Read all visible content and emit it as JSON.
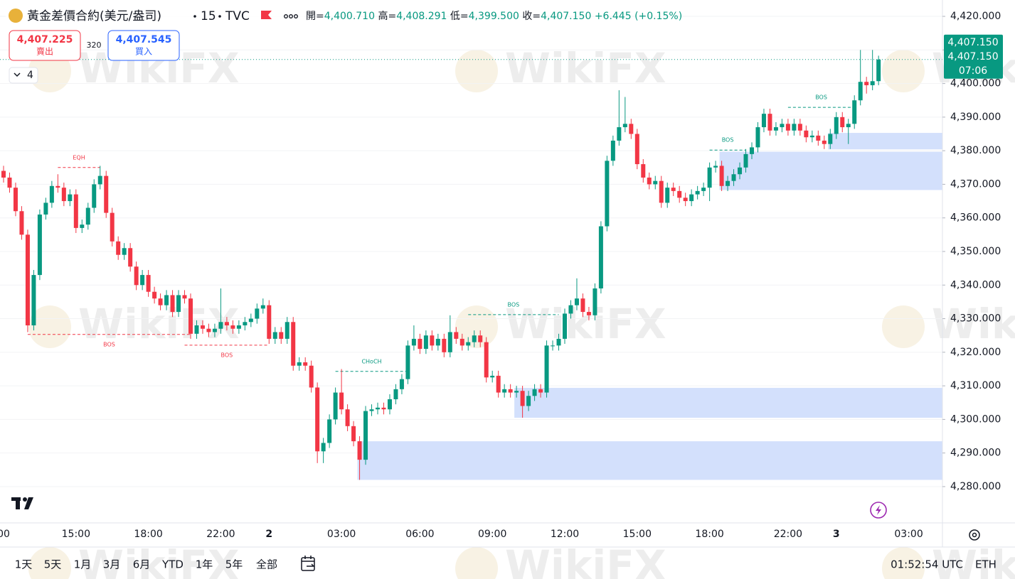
{
  "ui": {
    "symbol": "黃金差價合約(美元/盎司)",
    "interval": "15",
    "exchange": "TVC",
    "ohlc": [
      {
        "label": "開=",
        "value": "4,400.710"
      },
      {
        "label": "高=",
        "value": "4,408.291"
      },
      {
        "label": "低=",
        "value": "4,399.500"
      },
      {
        "label": "收=",
        "value": "4,407.150"
      }
    ],
    "change": "+6.445 (+0.15%)",
    "sell": {
      "price": "4,407.225",
      "label": "賣出"
    },
    "spread": "320",
    "buy": {
      "price": "4,407.545",
      "label": "買入"
    },
    "indicators": "4",
    "ranges": [
      "1天",
      "5天",
      "1月",
      "3月",
      "6月",
      "YTD",
      "1年",
      "5年",
      "全部"
    ],
    "clock": "01:52:54 UTC",
    "session": "ETH",
    "watermark": "WikiFX"
  },
  "chart_data": {
    "type": "candlestick",
    "up_color": "#089981",
    "down_color": "#f23645",
    "grid": true,
    "ylim": [
      4269.2,
      4424.87
    ],
    "yticks": [
      {
        "value": 4280,
        "label": "4,280.000"
      },
      {
        "value": 4290,
        "label": "4,290.000"
      },
      {
        "value": 4300,
        "label": "4,300.000"
      },
      {
        "value": 4310,
        "label": "4,310.000"
      },
      {
        "value": 4320,
        "label": "4,320.000"
      },
      {
        "value": 4330,
        "label": "4,330.000"
      },
      {
        "value": 4340,
        "label": "4,340.000"
      },
      {
        "value": 4350,
        "label": "4,350.000"
      },
      {
        "value": 4360,
        "label": "4,360.000"
      },
      {
        "value": 4370,
        "label": "4,370.000"
      },
      {
        "value": 4380,
        "label": "4,380.000"
      },
      {
        "value": 4390,
        "label": "4,390.000"
      },
      {
        "value": 4400,
        "label": "4,400.000"
      },
      {
        "value": 4410,
        "label": "4,410.000"
      },
      {
        "value": 4420,
        "label": "4,420.000"
      }
    ],
    "categories": [
      "00",
      null,
      null,
      null,
      null,
      null,
      null,
      null,
      null,
      null,
      null,
      null,
      "15:00",
      null,
      null,
      null,
      null,
      null,
      null,
      null,
      null,
      null,
      null,
      null,
      "18:00",
      null,
      null,
      null,
      null,
      null,
      null,
      null,
      null,
      null,
      null,
      null,
      "22:00",
      null,
      null,
      null,
      null,
      null,
      null,
      null,
      "2",
      null,
      null,
      null,
      null,
      null,
      null,
      null,
      null,
      null,
      null,
      null,
      "03:00",
      null,
      null,
      null,
      null,
      null,
      null,
      null,
      null,
      null,
      null,
      null,
      null,
      "06:00",
      null,
      null,
      null,
      null,
      null,
      null,
      null,
      null,
      null,
      null,
      null,
      "09:00",
      null,
      null,
      null,
      null,
      null,
      null,
      null,
      null,
      null,
      null,
      null,
      "12:00",
      null,
      null,
      null,
      null,
      null,
      null,
      null,
      null,
      null,
      null,
      null,
      "15:00",
      null,
      null,
      null,
      null,
      null,
      null,
      null,
      null,
      null,
      null,
      null,
      "18:00",
      null,
      null,
      null,
      null,
      null,
      null,
      null,
      null,
      null,
      null,
      null,
      null,
      "22:00",
      null,
      null,
      null,
      null,
      null,
      null,
      null,
      "3",
      null,
      null,
      null,
      null,
      null,
      null,
      null,
      null,
      null,
      null,
      null,
      "03:00",
      null,
      null,
      null,
      null,
      null
    ],
    "candles": [
      [
        4374,
        4375.5,
        4370.5,
        4372
      ],
      [
        4372,
        4373.5,
        4367.5,
        4369
      ],
      [
        4369,
        4370.5,
        4360.5,
        4362
      ],
      [
        4362,
        4363.5,
        4353.5,
        4355
      ],
      [
        4355,
        4356.5,
        4326,
        4328
      ],
      [
        4328,
        4344.5,
        4326.5,
        4343
      ],
      [
        4343,
        4362.5,
        4341.5,
        4361
      ],
      [
        4361,
        4366,
        4359.5,
        4364.5
      ],
      [
        4364.5,
        4371,
        4363,
        4369.5
      ],
      [
        4369.5,
        4373,
        4367.5,
        4369
      ],
      [
        4369,
        4370.5,
        4363.5,
        4365
      ],
      [
        4365,
        4368.5,
        4363.5,
        4367
      ],
      [
        4367,
        4368.5,
        4355.5,
        4357
      ],
      [
        4357,
        4359.5,
        4355.5,
        4358
      ],
      [
        4358,
        4364.5,
        4356.5,
        4363
      ],
      [
        4363,
        4371.5,
        4361.5,
        4370
      ],
      [
        4370,
        4375.5,
        4368.5,
        4372.5
      ],
      [
        4372.5,
        4374,
        4360,
        4361.5
      ],
      [
        4361.5,
        4363,
        4351.5,
        4353
      ],
      [
        4353,
        4354.5,
        4347.5,
        4349
      ],
      [
        4349,
        4352.5,
        4347.5,
        4351
      ],
      [
        4351,
        4352.5,
        4344,
        4345.5
      ],
      [
        4345.5,
        4347,
        4338.5,
        4340
      ],
      [
        4340,
        4344.5,
        4338.5,
        4343
      ],
      [
        4343,
        4344.5,
        4336.5,
        4338
      ],
      [
        4338,
        4339.5,
        4334.5,
        4336
      ],
      [
        4336,
        4337.5,
        4332.5,
        4334
      ],
      [
        4334,
        4338.5,
        4332.5,
        4337
      ],
      [
        4337,
        4338.5,
        4330.5,
        4332
      ],
      [
        4332,
        4338.5,
        4330.5,
        4337
      ],
      [
        4337,
        4338.5,
        4334.5,
        4336
      ],
      [
        4336,
        4337.5,
        4324,
        4325.5
      ],
      [
        4325.5,
        4329.5,
        4324,
        4328
      ],
      [
        4328,
        4329.5,
        4325.5,
        4327
      ],
      [
        4327,
        4328.5,
        4324.5,
        4326
      ],
      [
        4326,
        4328.5,
        4324.5,
        4327
      ],
      [
        4327,
        4339,
        4325.5,
        4329
      ],
      [
        4329,
        4330.5,
        4326.5,
        4328
      ],
      [
        4328,
        4329.5,
        4325.5,
        4327
      ],
      [
        4327,
        4329.5,
        4325.5,
        4328
      ],
      [
        4328,
        4330.5,
        4326.5,
        4329
      ],
      [
        4329,
        4331.5,
        4327.5,
        4330
      ],
      [
        4330,
        4334.5,
        4328.5,
        4333
      ],
      [
        4333,
        4336,
        4331.5,
        4334
      ],
      [
        4334,
        4335.5,
        4322.5,
        4324
      ],
      [
        4324,
        4327.5,
        4322.5,
        4326
      ],
      [
        4326,
        4327.5,
        4322.5,
        4324
      ],
      [
        4324,
        4330.5,
        4322.5,
        4329
      ],
      [
        4329,
        4330.5,
        4314.5,
        4316
      ],
      [
        4316,
        4318.5,
        4314.5,
        4317
      ],
      [
        4317,
        4318.5,
        4314.5,
        4316
      ],
      [
        4316,
        4317.5,
        4308,
        4309.5
      ],
      [
        4309.5,
        4311,
        4287,
        4290.5
      ],
      [
        4290.5,
        4294.5,
        4287,
        4293
      ],
      [
        4293,
        4301.5,
        4291.5,
        4300
      ],
      [
        4300,
        4309.5,
        4298.5,
        4308
      ],
      [
        4308,
        4315,
        4301.5,
        4303
      ],
      [
        4303,
        4304.5,
        4296.5,
        4298
      ],
      [
        4298,
        4299.5,
        4292,
        4293.5
      ],
      [
        4293.5,
        4295,
        4282,
        4288
      ],
      [
        4288,
        4304,
        4286.5,
        4302.5
      ],
      [
        4302.5,
        4304.5,
        4301,
        4303
      ],
      [
        4303,
        4305,
        4301.5,
        4303.5
      ],
      [
        4303.5,
        4305,
        4301.5,
        4303
      ],
      [
        4303,
        4307.5,
        4301.5,
        4306
      ],
      [
        4306,
        4310.5,
        4304.5,
        4309
      ],
      [
        4309,
        4313.5,
        4307.5,
        4312
      ],
      [
        4312,
        4323.5,
        4310.5,
        4322
      ],
      [
        4322,
        4328,
        4320.5,
        4324
      ],
      [
        4324,
        4325.5,
        4319.5,
        4321
      ],
      [
        4321,
        4326.5,
        4319.5,
        4325
      ],
      [
        4325,
        4326.5,
        4320.5,
        4322
      ],
      [
        4322,
        4325.5,
        4320.5,
        4324
      ],
      [
        4324,
        4325.5,
        4318.5,
        4320
      ],
      [
        4320,
        4331,
        4318.5,
        4326
      ],
      [
        4326,
        4327.5,
        4322.5,
        4324
      ],
      [
        4324,
        4325.5,
        4320.5,
        4322
      ],
      [
        4322,
        4324.5,
        4320.5,
        4323
      ],
      [
        4323,
        4326.5,
        4321.5,
        4325
      ],
      [
        4325,
        4326.5,
        4321.5,
        4323
      ],
      [
        4323,
        4324.5,
        4311,
        4312.5
      ],
      [
        4312.5,
        4314.5,
        4311,
        4313
      ],
      [
        4313,
        4314.5,
        4306.5,
        4308
      ],
      [
        4308,
        4310.5,
        4306.5,
        4309
      ],
      [
        4309,
        4310.5,
        4306.5,
        4308
      ],
      [
        4308,
        4310,
        4306.5,
        4308.5
      ],
      [
        4308.5,
        4310,
        4300.5,
        4304
      ],
      [
        4304,
        4308.5,
        4302.5,
        4307
      ],
      [
        4307,
        4310.5,
        4305.5,
        4309
      ],
      [
        4309,
        4310.5,
        4306.5,
        4308
      ],
      [
        4308,
        4323.5,
        4306.5,
        4322
      ],
      [
        4322,
        4323.5,
        4320.5,
        4322
      ],
      [
        4322,
        4325.5,
        4320.5,
        4324
      ],
      [
        4324,
        4333,
        4322.5,
        4331.5
      ],
      [
        4331.5,
        4335.5,
        4330,
        4334
      ],
      [
        4334,
        4342,
        4332.5,
        4336
      ],
      [
        4336,
        4337.5,
        4330.5,
        4332
      ],
      [
        4332,
        4333.5,
        4329.5,
        4331
      ],
      [
        4331,
        4340.5,
        4329.5,
        4339
      ],
      [
        4339,
        4359,
        4337.5,
        4357.5
      ],
      [
        4357.5,
        4378.5,
        4356,
        4377
      ],
      [
        4377,
        4384.5,
        4375.5,
        4383
      ],
      [
        4383,
        4398,
        4381.5,
        4387
      ],
      [
        4387,
        4396,
        4385.5,
        4388
      ],
      [
        4388,
        4389.5,
        4383.5,
        4385
      ],
      [
        4385,
        4386.5,
        4374.5,
        4376
      ],
      [
        4376,
        4377.5,
        4370.5,
        4372
      ],
      [
        4372,
        4373.5,
        4368.5,
        4370
      ],
      [
        4370,
        4372.5,
        4368.5,
        4371
      ],
      [
        4371,
        4372.5,
        4363,
        4364.5
      ],
      [
        4364.5,
        4370.5,
        4363,
        4369
      ],
      [
        4369,
        4370.5,
        4366.5,
        4368
      ],
      [
        4368,
        4369.5,
        4364.5,
        4366
      ],
      [
        4366,
        4367.5,
        4363.5,
        4365
      ],
      [
        4365,
        4368.5,
        4363.5,
        4367
      ],
      [
        4367,
        4369.5,
        4365.5,
        4368
      ],
      [
        4368,
        4370.5,
        4366.5,
        4369
      ],
      [
        4369,
        4376.5,
        4365,
        4375
      ],
      [
        4375,
        4377,
        4373.5,
        4375.5
      ],
      [
        4375.5,
        4377,
        4368,
        4369.5
      ],
      [
        4369.5,
        4372.5,
        4368,
        4371
      ],
      [
        4371,
        4374.5,
        4369.5,
        4373
      ],
      [
        4373,
        4376.5,
        4371.5,
        4375
      ],
      [
        4375,
        4380.5,
        4373.5,
        4379
      ],
      [
        4379,
        4382.5,
        4377.5,
        4381
      ],
      [
        4381,
        4388.5,
        4379.5,
        4387
      ],
      [
        4387,
        4392.5,
        4385.5,
        4391
      ],
      [
        4391,
        4392.5,
        4384.5,
        4386
      ],
      [
        4386,
        4388.5,
        4384.5,
        4387
      ],
      [
        4387,
        4389.5,
        4385.5,
        4388
      ],
      [
        4388,
        4389.5,
        4384.5,
        4386
      ],
      [
        4386,
        4389.5,
        4384.5,
        4388
      ],
      [
        4388,
        4389.5,
        4384.5,
        4386
      ],
      [
        4386,
        4387.5,
        4382.5,
        4384
      ],
      [
        4384,
        4386,
        4382.5,
        4384.5
      ],
      [
        4384.5,
        4386,
        4381.5,
        4383
      ],
      [
        4383,
        4384.5,
        4380.5,
        4382
      ],
      [
        4382,
        4386.5,
        4380.5,
        4385
      ],
      [
        4385,
        4391.5,
        4383.5,
        4390
      ],
      [
        4390,
        4391.5,
        4385.5,
        4387
      ],
      [
        4387,
        4389.5,
        4382,
        4388
      ],
      [
        4388,
        4396.5,
        4386.5,
        4395
      ],
      [
        4395,
        4410,
        4393.5,
        4400.5
      ],
      [
        4400.5,
        4402,
        4397,
        4399.5
      ],
      [
        4399.5,
        4410,
        4398,
        4400.7
      ],
      [
        4400.71,
        4408.291,
        4399.5,
        4407.15
      ],
      null,
      null,
      null,
      null,
      null,
      null,
      null,
      null,
      null,
      null
    ],
    "zones": [
      {
        "from": 59,
        "low": 4282,
        "high": 4293.5
      },
      {
        "from": 85,
        "low": 4300.5,
        "high": 4309.4
      },
      {
        "from": 119,
        "low": 4368.3,
        "high": 4379.7
      },
      {
        "from": 137,
        "low": 4380.4,
        "high": 4385.3
      }
    ],
    "structures": [
      {
        "label": "EQH",
        "from": 9,
        "to": 16,
        "price": 4375,
        "color": "#f23645",
        "label_side": "above"
      },
      {
        "label": "BOS",
        "from": 4,
        "to": 31,
        "price": 4325.3,
        "color": "#f23645",
        "label_side": "below"
      },
      {
        "label": "BOS",
        "from": 30,
        "to": 44,
        "price": 4322.1,
        "color": "#f23645",
        "label_side": "below"
      },
      {
        "label": "CHoCH",
        "from": 55,
        "to": 67,
        "price": 4314.3,
        "color": "#089981",
        "label_side": "above"
      },
      {
        "label": "BOS",
        "from": 77,
        "to": 92,
        "price": 4331.2,
        "color": "#089981",
        "label_side": "above"
      },
      {
        "label": "BOS",
        "from": 117,
        "to": 123,
        "price": 4380.2,
        "color": "#089981",
        "label_side": "above"
      },
      {
        "label": "BOS",
        "from": 130,
        "to": 141,
        "price": 4392.9,
        "color": "#089981",
        "label_side": "above"
      }
    ],
    "price_badge": {
      "value": 4407.15,
      "color": "#089981",
      "labels": [
        "4,407.150",
        "4,407.150",
        "07:06"
      ]
    }
  }
}
